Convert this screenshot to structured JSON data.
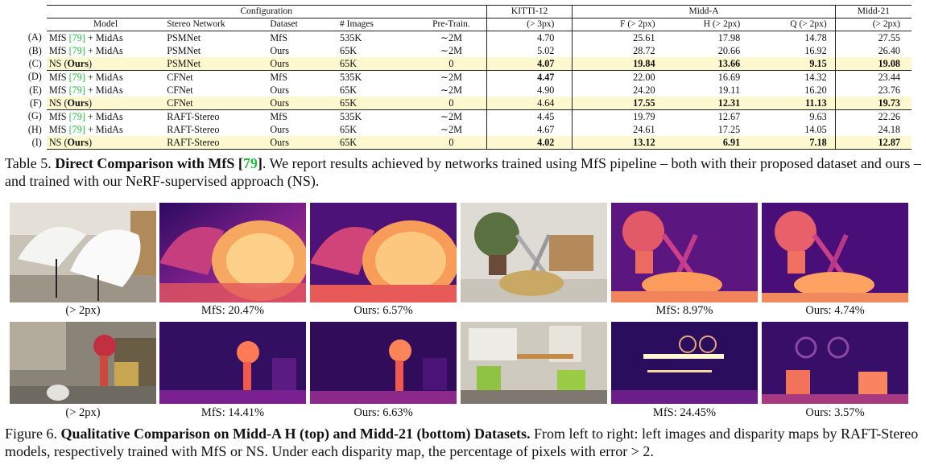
{
  "table": {
    "config_header": "Configuration",
    "kitti_header": "KITTI-12",
    "middA_header": "Midd-A",
    "midd21_header": "Midd-21",
    "columns": {
      "model": "Model",
      "net": "Stereo Network",
      "ds": "Dataset",
      "img": "# Images",
      "pre": "Pre-Train.",
      "kitti": "(> 3px)",
      "f": "F (> 2px)",
      "h": "H (> 2px)",
      "q": "Q (> 2px)",
      "m21": "(> 2px)"
    },
    "rows": [
      {
        "label": "(A)",
        "model": "MfS",
        "ref": "[79]",
        "suffix": " + MidAs",
        "net": "PSMNet",
        "ds": "MfS",
        "img": "535K",
        "pre": "∼2M",
        "kitti": "4.70",
        "f": "25.61",
        "h": "17.98",
        "q": "14.78",
        "m21": "27.55"
      },
      {
        "label": "(B)",
        "model": "MfS",
        "ref": "[79]",
        "suffix": " + MidAs",
        "net": "PSMNet",
        "ds": "Ours",
        "img": "65K",
        "pre": "∼2M",
        "kitti": "5.02",
        "f": "28.72",
        "h": "20.66",
        "q": "16.92",
        "m21": "26.40"
      },
      {
        "label": "(C)",
        "model": "NS (",
        "ours": "Ours",
        "suffix": ")",
        "net": "PSMNet",
        "ds": "Ours",
        "img": "65K",
        "pre": "0",
        "kitti": "4.07",
        "f": "19.84",
        "h": "13.66",
        "q": "9.15",
        "m21": "19.08"
      },
      {
        "label": "(D)",
        "model": "MfS",
        "ref": "[79]",
        "suffix": " + MidAs",
        "net": "CFNet",
        "ds": "MfS",
        "img": "535K",
        "pre": "∼2M",
        "kitti": "4.47",
        "f": "22.00",
        "h": "16.69",
        "q": "14.32",
        "m21": "23.44"
      },
      {
        "label": "(E)",
        "model": "MfS",
        "ref": "[79]",
        "suffix": " + MidAs",
        "net": "CFNet",
        "ds": "Ours",
        "img": "65K",
        "pre": "∼2M",
        "kitti": "4.90",
        "f": "24.20",
        "h": "19.11",
        "q": "16.20",
        "m21": "23.76"
      },
      {
        "label": "(F)",
        "model": "NS (",
        "ours": "Ours",
        "suffix": ")",
        "net": "CFNet",
        "ds": "Ours",
        "img": "65K",
        "pre": "0",
        "kitti": "4.64",
        "f": "17.55",
        "h": "12.31",
        "q": "11.13",
        "m21": "19.73"
      },
      {
        "label": "(G)",
        "model": "MfS",
        "ref": "[79]",
        "suffix": " + MidAs",
        "net": "RAFT-Stereo",
        "ds": "MfS",
        "img": "535K",
        "pre": "∼2M",
        "kitti": "4.45",
        "f": "19.79",
        "h": "12.67",
        "q": "9.63",
        "m21": "22.26"
      },
      {
        "label": "(H)",
        "model": "MfS",
        "ref": "[79]",
        "suffix": " + MidAs",
        "net": "RAFT-Stereo",
        "ds": "Ours",
        "img": "65K",
        "pre": "∼2M",
        "kitti": "4.67",
        "f": "24.61",
        "h": "17.25",
        "q": "14.05",
        "m21": "24.18"
      },
      {
        "label": "(I)",
        "model": "NS (",
        "ours": "Ours",
        "suffix": ")",
        "net": "RAFT-Stereo",
        "ds": "Ours",
        "img": "65K",
        "pre": "0",
        "kitti": "4.02",
        "f": "13.12",
        "h": "6.91",
        "q": "7.18",
        "m21": "12.87"
      }
    ]
  },
  "caption5": {
    "prefix": "Table 5. ",
    "bold": "Direct Comparison with MfS [",
    "ref": "79",
    "bold_end": "]",
    "rest": ". We report results achieved by networks trained using MfS pipeline – both with their proposed dataset and ours – and trained with our NeRF-supervised approach (NS)."
  },
  "figure": {
    "row1_labels": [
      "(> 2px)",
      "MfS: 20.47%",
      "Ours: 6.57%",
      "",
      "MfS: 8.97%",
      "Ours: 4.74%"
    ],
    "row2_labels": [
      "(> 2px)",
      "MfS: 14.41%",
      "Ours: 6.63%",
      "",
      "MfS: 24.45%",
      "Ours: 3.57%"
    ]
  },
  "caption6": {
    "prefix": "Figure 6. ",
    "bold": "Qualitative Comparison on Midd-A H (top) and Midd-21 (bottom) Datasets.",
    "rest": " From left to right: left images and disparity maps by RAFT-Stereo models, respectively trained with MfS or NS. Under each disparity map, the percentage of pixels with error > 2."
  },
  "colors": {
    "ref_green": "#1fbf3a",
    "ours_highlight": "#fdf8d0"
  },
  "bold_cells": {
    "C": [
      "kitti",
      "f",
      "h",
      "q",
      "m21"
    ],
    "D": [
      "kitti"
    ],
    "F": [
      "f",
      "h",
      "q",
      "m21"
    ],
    "I": [
      "kitti",
      "f",
      "h",
      "q",
      "m21"
    ]
  }
}
